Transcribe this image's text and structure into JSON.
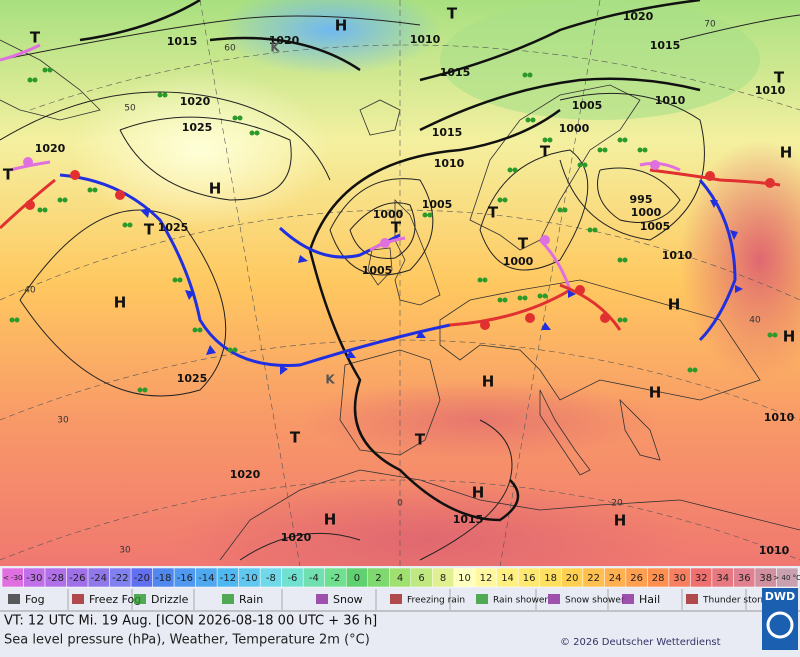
{
  "map": {
    "isobar_labels": [
      "1015",
      "1020",
      "1010",
      "1015",
      "1015",
      "1020",
      "1010",
      "1020",
      "1025",
      "1005",
      "1010",
      "1000",
      "1015",
      "1010",
      "1020",
      "1005",
      "1000",
      "995",
      "1000",
      "1005",
      "1010",
      "1025",
      "1005",
      "1000",
      "1025",
      "1020",
      "1015",
      "1020",
      "1010",
      "1010"
    ],
    "pressure_centers": [
      "H",
      "T",
      "T",
      "H",
      "T",
      "H",
      "T",
      "T",
      "T",
      "T",
      "T",
      "H",
      "T",
      "H",
      "H",
      "H",
      "T",
      "T",
      "H",
      "H",
      "H",
      "H",
      "K",
      "K"
    ],
    "graticule_labels": [
      "30",
      "40",
      "50",
      "60",
      "70",
      "40",
      "30",
      "20",
      "0"
    ]
  },
  "color_scale": {
    "labels": [
      "< -30",
      -30,
      -28,
      -26,
      -24,
      -22,
      -20,
      -18,
      -16,
      -14,
      -12,
      -10,
      -8,
      -6,
      -4,
      -2,
      0,
      2,
      4,
      6,
      8,
      10,
      12,
      14,
      16,
      18,
      20,
      22,
      24,
      26,
      28,
      30,
      32,
      34,
      36,
      38,
      "> 40 °C"
    ],
    "colors": [
      "#e070e0",
      "#c070e8",
      "#b070e8",
      "#a070e8",
      "#9078e8",
      "#8080f0",
      "#6070f0",
      "#5088f0",
      "#5098f0",
      "#50a8f0",
      "#50b8f0",
      "#60c8f0",
      "#70d8e8",
      "#70e0d0",
      "#70e0b0",
      "#70e090",
      "#60d070",
      "#80d870",
      "#a0e070",
      "#c0e880",
      "#e0f090",
      "#ffffc0",
      "#fff8a0",
      "#fff080",
      "#ffe870",
      "#ffe060",
      "#ffd050",
      "#ffc050",
      "#ffb050",
      "#ffa050",
      "#ff9050",
      "#f88060",
      "#f07070",
      "#e87880",
      "#e08090",
      "#d090a0",
      "#c8a0b0"
    ]
  },
  "weather_legend": [
    "Fog",
    "Freez Fog",
    "Drizzle",
    "Rain",
    "Snow",
    "Freezing rain",
    "Rain shower",
    "Snow shower",
    "Hail",
    "Thunder storm"
  ],
  "footer": {
    "valid_time": "VT: 12 UTC Mi.  19 Aug. [ICON 2026-08-18  00 UTC + 36 h]",
    "description": "Sea level pressure (hPa), Weather, Temperature 2m (°C)",
    "copyright": "© 2026 Deutscher Wetterdienst",
    "logo": "DWD"
  }
}
